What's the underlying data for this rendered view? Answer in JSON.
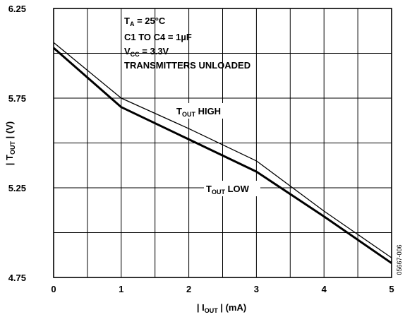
{
  "chart_data": {
    "type": "line",
    "xlabel": {
      "pre": "| I",
      "sub": "OUT",
      "post": " | (mA)"
    },
    "ylabel": {
      "pre": "| T",
      "sub": "OUT",
      "post": " | (V)"
    },
    "xlim": [
      0,
      5
    ],
    "ylim": [
      4.75,
      6.25
    ],
    "x_ticks": [
      0,
      1,
      2,
      3,
      4,
      5
    ],
    "x_tick_labels": [
      "0",
      "1",
      "2",
      "3",
      "4",
      "5"
    ],
    "y_ticks": [
      4.75,
      5.25,
      5.75,
      6.25
    ],
    "y_tick_labels": [
      "4.75",
      "5.25",
      "5.75",
      "6.25"
    ],
    "grid": true,
    "series": [
      {
        "name": {
          "pre": "T",
          "sub": "OUT",
          "post": " HIGH"
        },
        "style": "thin",
        "x": [
          0,
          1,
          2,
          3,
          4,
          5
        ],
        "y": [
          6.06,
          5.75,
          5.58,
          5.4,
          5.12,
          4.86
        ]
      },
      {
        "name": {
          "pre": "T",
          "sub": "OUT",
          "post": " LOW"
        },
        "style": "thick",
        "x": [
          0,
          1,
          2,
          3,
          4,
          5
        ],
        "y": [
          6.03,
          5.7,
          5.52,
          5.34,
          5.09,
          4.83
        ]
      }
    ],
    "annotations": [
      {
        "pre": "T",
        "sub": "A",
        "post": " = 25°C"
      },
      {
        "pre": "C1 TO C4 = 1µF",
        "sub": "",
        "post": ""
      },
      {
        "pre": "V",
        "sub": "CC",
        "post": " = 3.3V"
      },
      {
        "pre": "TRANSMITTERS UNLOADED",
        "sub": "",
        "post": ""
      }
    ],
    "figure_code": "05667-006",
    "colors": {
      "line": "#000000",
      "grid": "#000000",
      "background": "#ffffff"
    }
  }
}
